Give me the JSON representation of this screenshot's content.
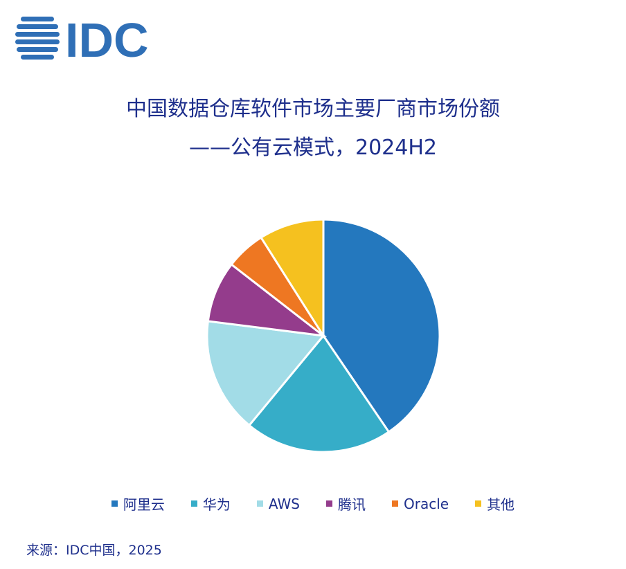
{
  "logo": {
    "text": "IDC",
    "color": "#2f6fb6"
  },
  "chart_data": {
    "type": "pie",
    "title": "中国数据仓库软件市场主要厂商市场份额",
    "subtitle": "——公有云模式，2024H2",
    "categories": [
      "阿里云",
      "华为",
      "AWS",
      "腾讯",
      "Oracle",
      "其他"
    ],
    "values": [
      40.5,
      20.5,
      16.0,
      8.5,
      5.5,
      9.0
    ],
    "colors": [
      "#2478be",
      "#36adc8",
      "#a2dce7",
      "#943c8c",
      "#ee7722",
      "#f5c11f"
    ],
    "legend_position": "bottom"
  },
  "source": "来源：IDC中国，2025"
}
